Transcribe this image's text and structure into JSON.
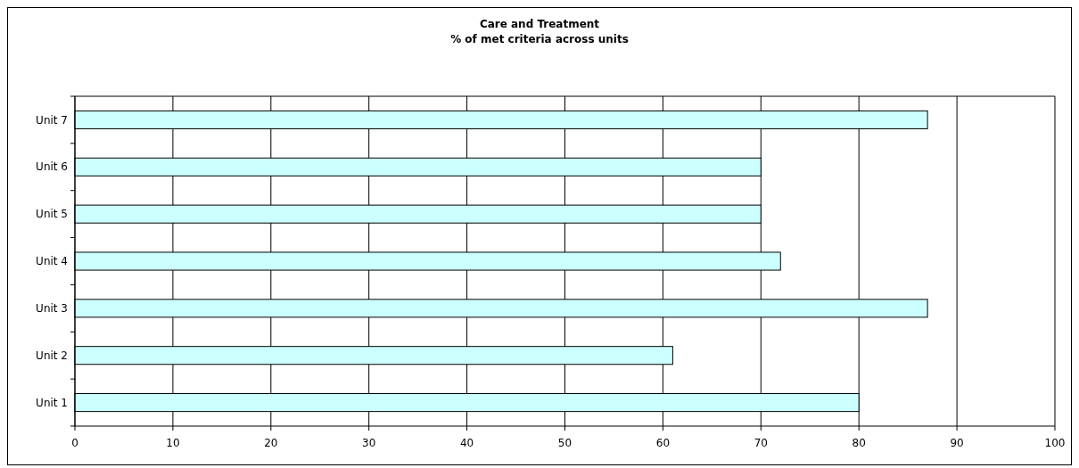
{
  "chart_data": {
    "type": "bar",
    "orientation": "horizontal",
    "title": "Care and Treatment",
    "subtitle": "% of met criteria across units",
    "categories": [
      "Unit 7",
      "Unit 6",
      "Unit 5",
      "Unit 4",
      "Unit 3",
      "Unit 2",
      "Unit 1"
    ],
    "values": [
      87,
      70,
      70,
      72,
      87,
      61,
      80
    ],
    "color": "#ccffff",
    "xlim": [
      0,
      100
    ],
    "xticks": [
      0,
      10,
      20,
      30,
      40,
      50,
      60,
      70,
      80,
      90,
      100
    ],
    "grid": "x"
  }
}
